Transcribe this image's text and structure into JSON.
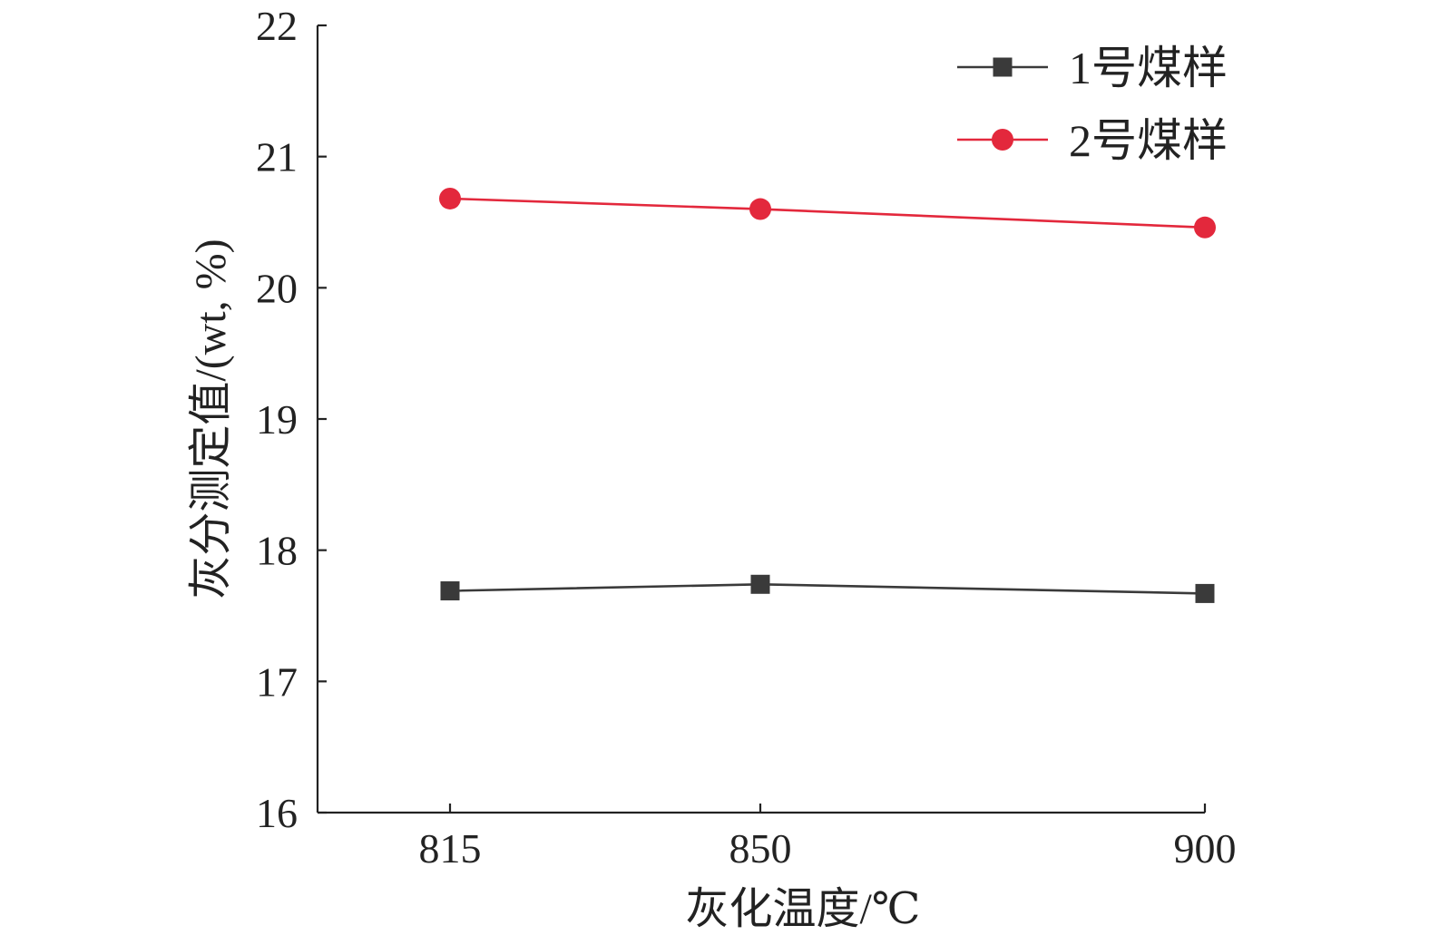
{
  "chart_data": {
    "type": "line",
    "title": "",
    "xlabel": "灰化温度/℃",
    "ylabel": "灰分测定值/(wt, %)",
    "categories": [
      "815",
      "850",
      "900"
    ],
    "x": [
      815,
      850,
      900
    ],
    "ylim": [
      16,
      22
    ],
    "yticks": [
      16,
      17,
      18,
      19,
      20,
      21,
      22
    ],
    "grid": false,
    "legend_position": "top-right",
    "series": [
      {
        "name": "1号煤样",
        "values": [
          17.69,
          17.74,
          17.67
        ],
        "color": "#3a3a3a",
        "marker": "square"
      },
      {
        "name": "2号煤样",
        "values": [
          20.68,
          20.6,
          20.46
        ],
        "color": "#e3283c",
        "marker": "circle"
      }
    ]
  }
}
